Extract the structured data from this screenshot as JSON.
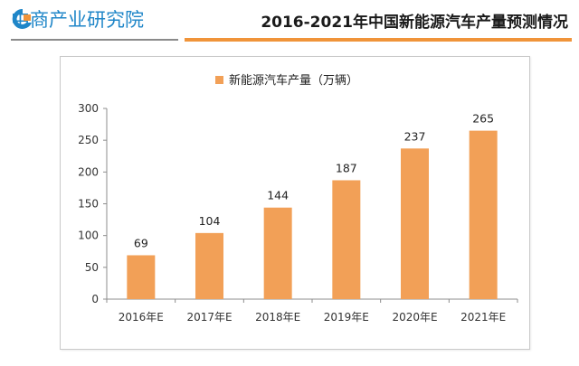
{
  "header": {
    "logo_text": "中商产业研究院",
    "title": "2016-2021年中国新能源汽车产量预测情况"
  },
  "colors": {
    "bar": "#f2a057",
    "accent": "#f0943a",
    "logo_blue": "#1f86c8"
  },
  "chart_data": {
    "type": "bar",
    "categories": [
      "2016年E",
      "2017年E",
      "2018年E",
      "2019年E",
      "2020年E",
      "2021年E"
    ],
    "series": [
      {
        "name": "新能源汽车产量（万辆）",
        "values": [
          69,
          104,
          144,
          187,
          237,
          265
        ]
      }
    ],
    "ylim": [
      0,
      300
    ],
    "yticks": [
      0,
      50,
      100,
      150,
      200,
      250,
      300
    ],
    "legend": "top",
    "grid": false
  }
}
